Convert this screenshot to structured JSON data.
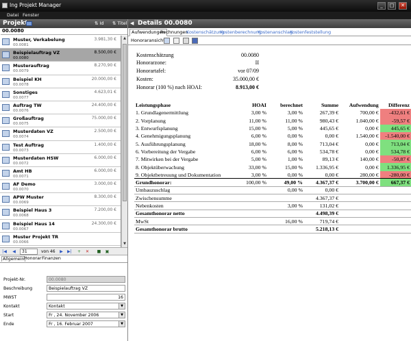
{
  "window": {
    "title": "Ing Projekt Manager",
    "min": "_",
    "max": "□",
    "close": "✕"
  },
  "menu": [
    "Datei",
    "Fenster"
  ],
  "left": {
    "title": "Projekte",
    "sort_id": "Id",
    "sort_title": "Titel",
    "selected_id": "00.0080",
    "projects": [
      {
        "name": "Muster, Verkabelung",
        "no": "00.0081",
        "amount": "3.981,30 €"
      },
      {
        "name": "Beispielauftrag VZ",
        "no": "00.0080",
        "amount": "8.500,00 €",
        "sel": true
      },
      {
        "name": "Musterauftrag",
        "no": "00.0079",
        "amount": "8.270,90 €"
      },
      {
        "name": "Beispiel KH",
        "no": "00.0078",
        "amount": "20.000,00 €"
      },
      {
        "name": "Sonstiges",
        "no": "00.0077",
        "amount": "4.623,01 €"
      },
      {
        "name": "Auftrag TW",
        "no": "00.0076",
        "amount": "24.400,00 €"
      },
      {
        "name": "Großauftrag",
        "no": "00.0075",
        "amount": "75.000,00 €"
      },
      {
        "name": "Musterdaten VZ",
        "no": "00.0074",
        "amount": "2.500,00 €"
      },
      {
        "name": "Test Auftrag",
        "no": "00.0073",
        "amount": "1.400,00 €"
      },
      {
        "name": "Musterdaten HSW",
        "no": "00.0072",
        "amount": "6.000,00 €"
      },
      {
        "name": "Amt HB",
        "no": "00.0071",
        "amount": "6.000,00 €"
      },
      {
        "name": "AF Demo",
        "no": "00.0070",
        "amount": "3.000,00 €"
      },
      {
        "name": "APW Muster",
        "no": "00.0069",
        "amount": "8.300,00 €"
      },
      {
        "name": "Beispiel Haus 3",
        "no": "00.0068",
        "amount": "7.200,00 €"
      },
      {
        "name": "Beispiel Haus 14",
        "no": "00.0067",
        "amount": "24.300,00 €"
      },
      {
        "name": "Muster Projekt TR",
        "no": "00.0066",
        "amount": ""
      }
    ],
    "nav": {
      "position": "31",
      "of": "von 46"
    },
    "tabs": [
      "Allgemein",
      "Honorar",
      "Finanzen"
    ],
    "form": {
      "projektnr_label": "Projekt-Nr.",
      "projektnr": "00.0080",
      "beschreibung_label": "Beschreibung",
      "beschreibung": "Beispielauftrag VZ",
      "mwst_label": "MWST",
      "mwst": "16",
      "kontakt_label": "Kontakt",
      "kontakt": "Kontakt",
      "start_label": "Start",
      "start": "Fr , 24. November 2006",
      "ende_label": "Ende",
      "ende": "Fr , 16.  Februar   2007"
    }
  },
  "right": {
    "title": "Details 00.0080",
    "tabs": [
      "Aufwendungen",
      "Rechnungen",
      "Kostenschätzung",
      "Kostenberechnung",
      "Kostenanschlag",
      "Kostenfeststellung"
    ],
    "toolbar_label": "Honoraransicht",
    "header": [
      {
        "label": "Kostenschätzung",
        "value": "00.0080"
      },
      {
        "label": "Honorarzone:",
        "value": "II"
      },
      {
        "label": "Honorartafel:",
        "value": "vor 07/09"
      },
      {
        "label": "Kosten:",
        "value": "35.000,00 €"
      },
      {
        "label": "Honorar (100 %) nach HOAI:",
        "value": "8.913,00 €"
      }
    ],
    "cols": [
      "Leistungsphase",
      "HOAI",
      "berechnet",
      "Summe",
      "Aufwendung",
      "Differenz"
    ],
    "phases": [
      [
        "1. Grundlagenermittlung",
        "3,00 %",
        "3,00 %",
        "267,39 €",
        "700,00 €",
        "-432,61 €",
        "neg"
      ],
      [
        "2. Vorplanung",
        "11,00 %",
        "11,00 %",
        "980,43 €",
        "1.040,00 €",
        "-59,57 €",
        "neg"
      ],
      [
        "3. Entwurfsplanung",
        "15,00 %",
        "5,00 %",
        "445,65 €",
        "0,00 €",
        "445,65 €",
        "pos"
      ],
      [
        "4. Genehmigungsplanung",
        "6,00 %",
        "0,00 %",
        "0,00 €",
        "1.540,00 €",
        "-1.540,00 €",
        "neg"
      ],
      [
        "5. Ausführungsplanung",
        "18,00 %",
        "8,00 %",
        "713,04 €",
        "0,00 €",
        "713,04 €",
        "pos"
      ],
      [
        "6. Vorbereitung der Vergabe",
        "6,00 %",
        "6,00 %",
        "534,78 €",
        "0,00 €",
        "534,78 €",
        "pos"
      ],
      [
        "7. Mitwirken bei der Vergabe",
        "5,00 %",
        "1,00 %",
        "89,13 €",
        "140,00 €",
        "-50,87 €",
        "neg"
      ],
      [
        "8. Objektüberwachung",
        "33,00 %",
        "15,00 %",
        "1.336,95 €",
        "0,00 €",
        "1.336,95 €",
        "pos"
      ],
      [
        "9. Objektbetreuung und Dokumentation",
        "3,00 %",
        "0,00 %",
        "0,00 €",
        "280,00 €",
        "-280,00 €",
        "neg"
      ]
    ],
    "grund": {
      "label": "Grundhonorar:",
      "hoai": "100,00 %",
      "berechnet": "49,00 %",
      "summe": "4.367,37 €",
      "aufwendung": "3.700,00 €",
      "differenz": "667,37 €"
    },
    "umbau": {
      "label": "Umbauzuschlag",
      "berechnet": "0,00 %",
      "summe": "0,00 €"
    },
    "zwischen": {
      "label": "Zwischensumme",
      "summe": "4.367,37 €"
    },
    "neben": {
      "label": "Nebenkosten",
      "berechnet": "3,00 %",
      "summe": "131,02 €"
    },
    "netto": {
      "label": "Gesamthonorar netto",
      "summe": "4.498,39 €"
    },
    "mwst": {
      "label": "MwSt",
      "berechnet": "16,00 %",
      "summe": "719,74 €"
    },
    "brutto": {
      "label": "Gesamthonorar brutto",
      "summe": "5.218,13 €"
    }
  }
}
